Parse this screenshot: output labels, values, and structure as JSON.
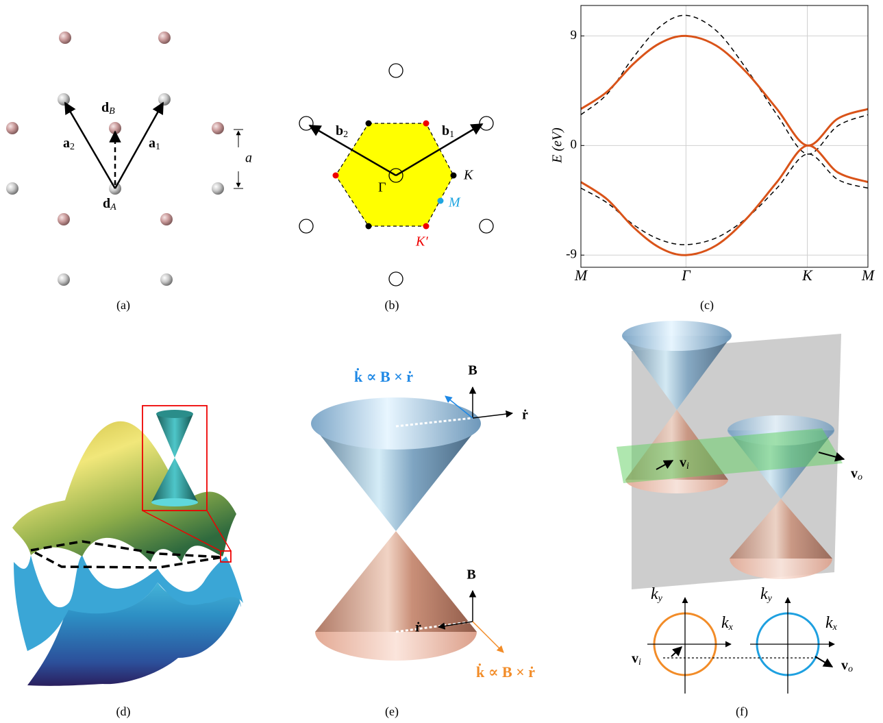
{
  "panel_a": {
    "caption": "(a)",
    "a1": {
      "main": "a",
      "sub": "1"
    },
    "a2": {
      "main": "a",
      "sub": "2"
    },
    "dA": {
      "main": "d",
      "sub": "A"
    },
    "dB": {
      "main": "d",
      "sub": "B"
    },
    "lattice_constant": "a"
  },
  "panel_b": {
    "caption": "(b)",
    "b1": {
      "main": "b",
      "sub": "1"
    },
    "b2": {
      "main": "b",
      "sub": "2"
    },
    "gamma": "Γ",
    "K": "K",
    "M": "M",
    "K_prime": "K′"
  },
  "panel_c": {
    "caption": "(c)",
    "chart_data": {
      "type": "line",
      "ylabel": "E (eV)",
      "x": [
        0,
        0.25,
        0.5,
        0.75,
        1,
        1.289,
        1.577,
        1.866,
        2.155,
        2.444,
        2.732
      ],
      "xlim": [
        0,
        2.732
      ],
      "xticks": [
        {
          "value": 0,
          "label": "M"
        },
        {
          "value": 1,
          "label": "Γ"
        },
        {
          "value": 2.155,
          "label": "K"
        },
        {
          "value": 2.732,
          "label": "M"
        }
      ],
      "ylim": [
        -10,
        11.5
      ],
      "yticks": [
        9,
        0,
        -9
      ],
      "grid": true,
      "series": [
        {
          "color": "#000000",
          "dashed": true,
          "values": [
            2.53,
            4.23,
            7.25,
            9.74,
            10.69,
            9.43,
            6.28,
            2.53,
            -0.7,
            1.61,
            2.53
          ]
        },
        {
          "color": "#000000",
          "dashed": true,
          "values": [
            -3.5,
            -4.71,
            -6.5,
            -7.72,
            -8.14,
            -7.58,
            -5.96,
            -3.5,
            -0.7,
            -2.79,
            -3.5
          ]
        },
        {
          "color": "#d95319",
          "dashed": false,
          "values": [
            3,
            4.42,
            6.71,
            8.39,
            9,
            8.2,
            6,
            3,
            0,
            2.2,
            3
          ]
        },
        {
          "color": "#d95319",
          "dashed": false,
          "values": [
            -3,
            -4.42,
            -6.71,
            -8.39,
            -9,
            -8.2,
            -6,
            -3,
            0,
            -2.2,
            -3
          ]
        }
      ]
    }
  },
  "panel_d": {
    "caption": "(d)"
  },
  "panel_e": {
    "caption": "(e)",
    "B_top": "B",
    "r_top": "ṙ",
    "relation_top": "k̇ ∝ B × ṙ",
    "B_bottom": "B",
    "r_bottom": "ṙ",
    "relation_bottom": "k̇ ∝ B × ṙ"
  },
  "panel_f": {
    "caption": "(f)",
    "vi_top": {
      "main": "v",
      "sub": "i"
    },
    "vo_top": {
      "main": "v",
      "sub": "o"
    },
    "ky_left": {
      "main": "k",
      "sub": "y"
    },
    "kx_left": {
      "main": "k",
      "sub": "x"
    },
    "ky_right": {
      "main": "k",
      "sub": "y"
    },
    "kx_right": {
      "main": "k",
      "sub": "x"
    },
    "vi_bottom": {
      "main": "v",
      "sub": "i"
    },
    "vo_bottom": {
      "main": "v",
      "sub": "o"
    }
  }
}
